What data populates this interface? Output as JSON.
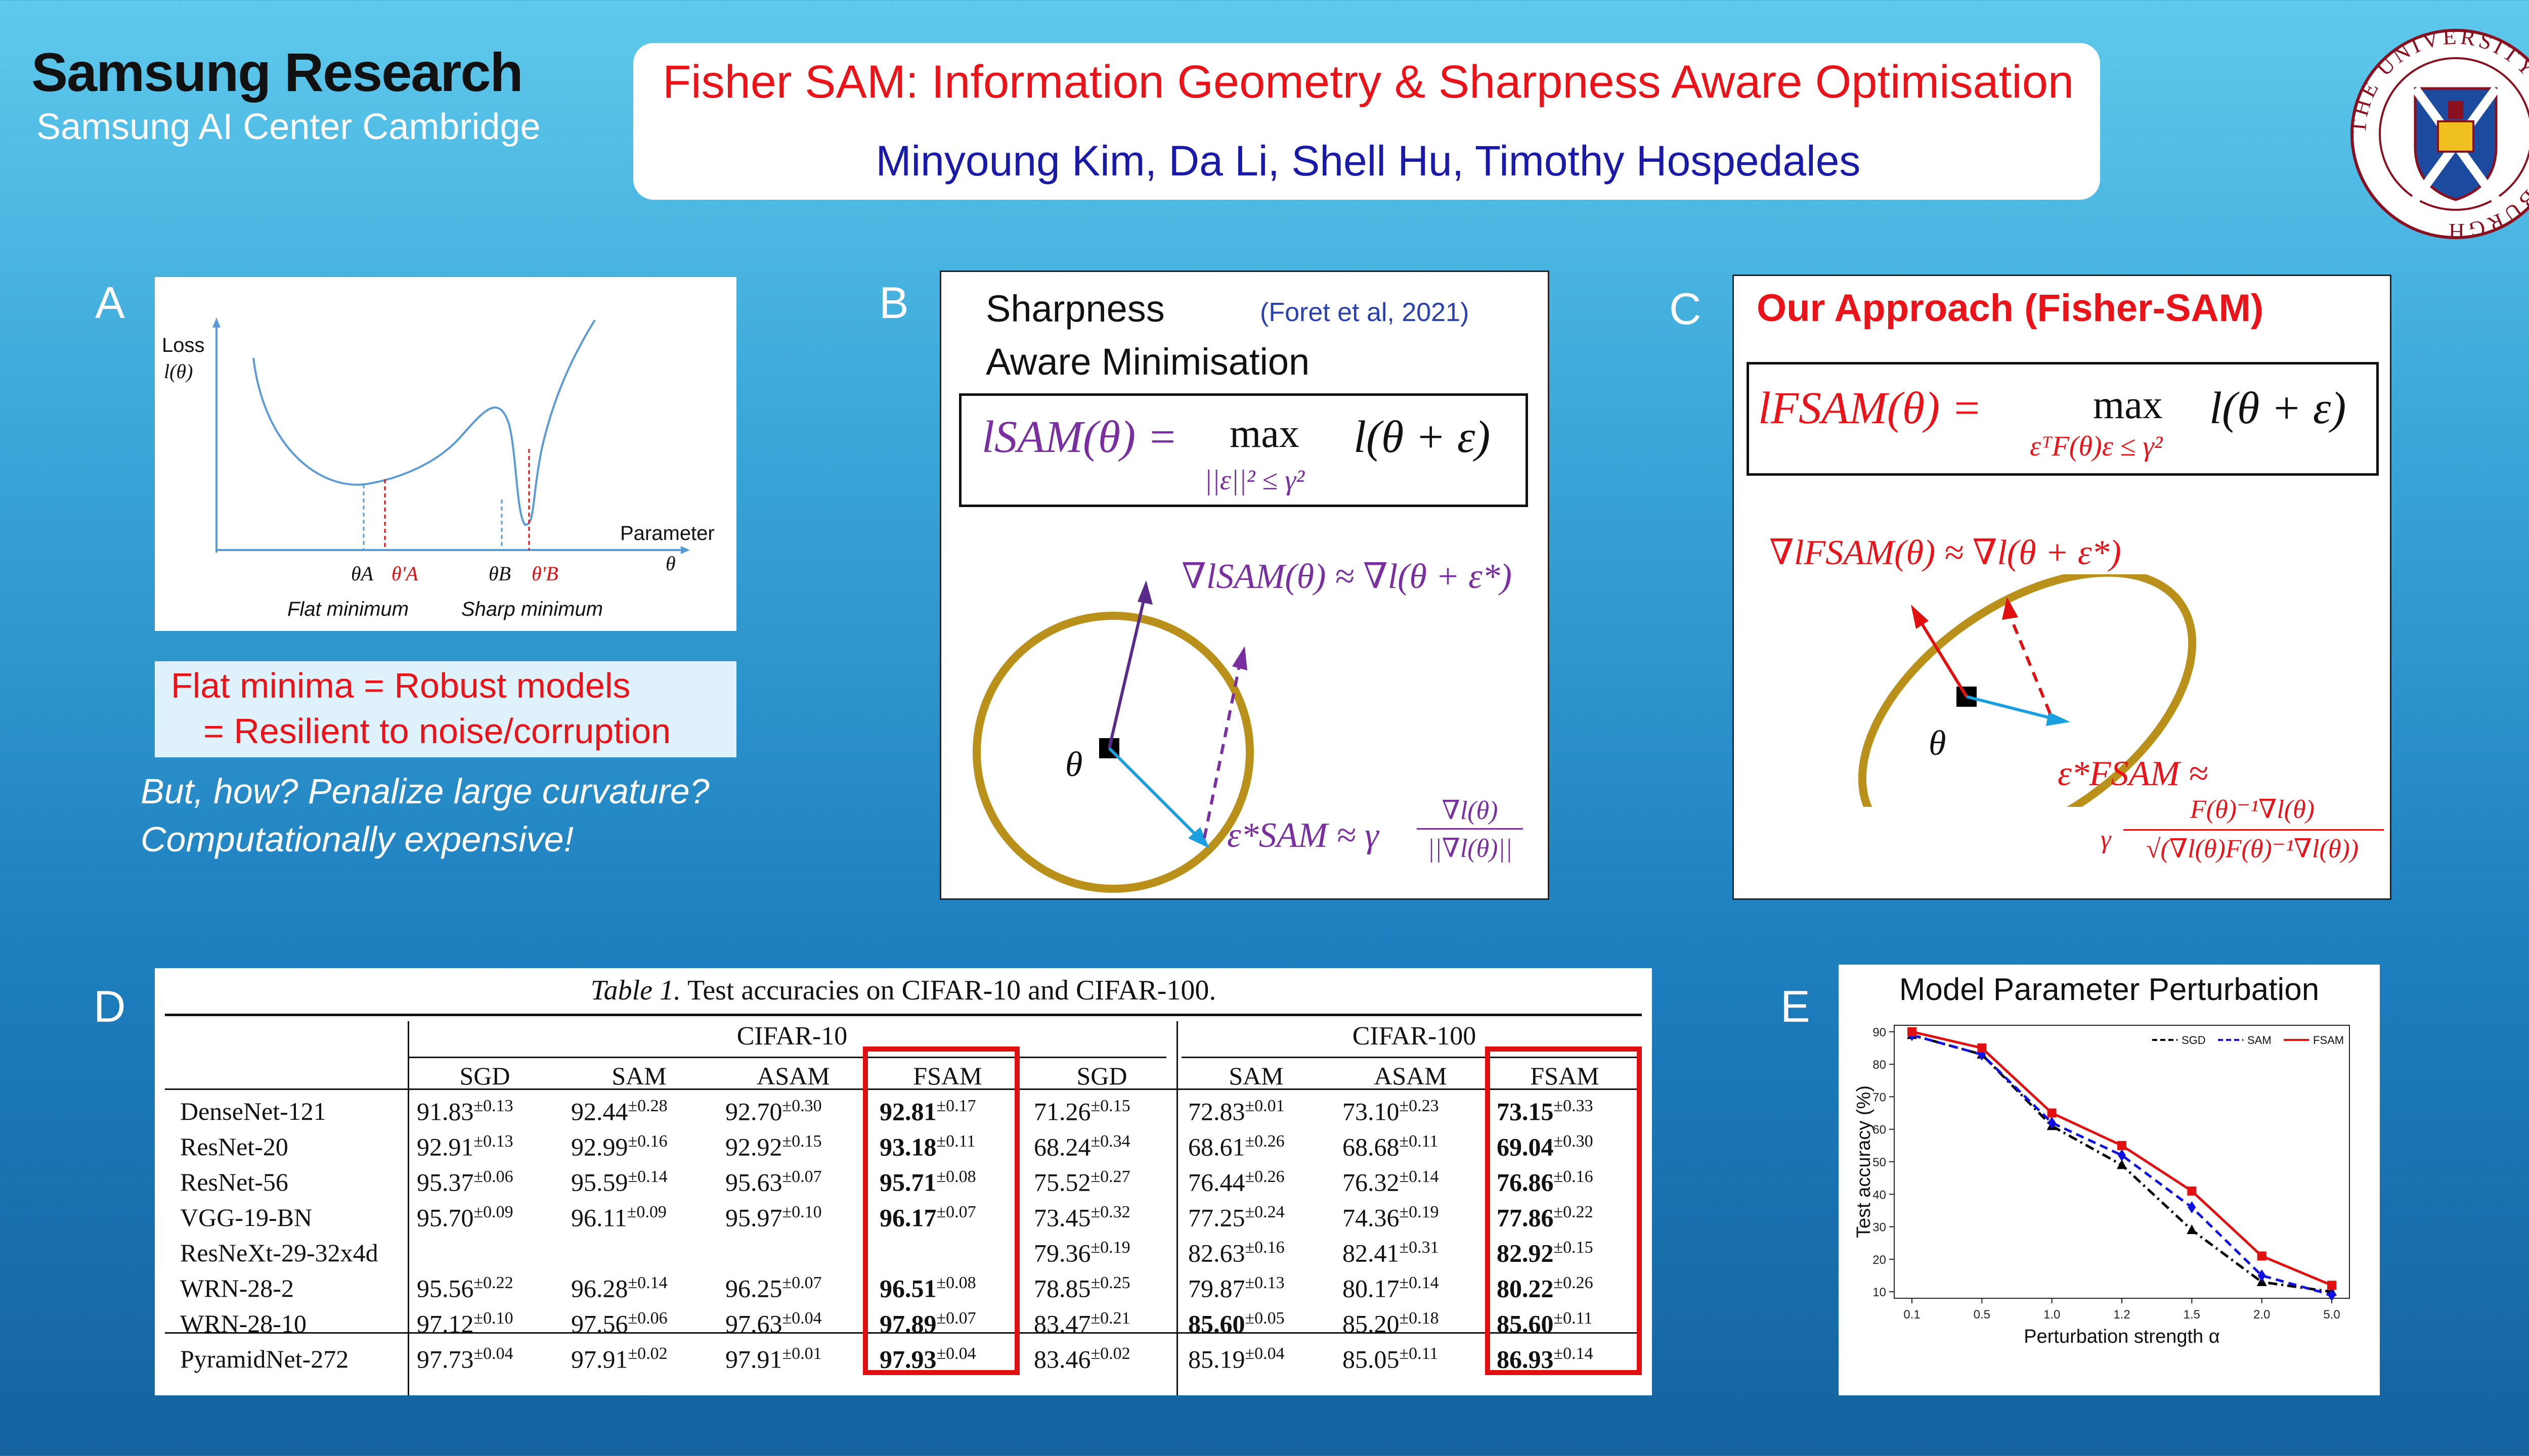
{
  "header": {
    "brand": "Samsung Research",
    "brand_sub": "Samsung AI Center Cambridge",
    "title": "Fisher SAM: Information Geometry & Sharpness Aware Optimisation",
    "authors": "Minyoung Kim,  Da Li,  Shell Hu,  Timothy Hospedales",
    "logo_text": "THE UNIVERSITY OF EDINBURGH"
  },
  "panel_a": {
    "letter": "A",
    "ylabel_1": "Loss",
    "ylabel_2": "l(θ)",
    "xlabel_1": "Parameter",
    "xlabel_2": "θ",
    "theta_a": "θA",
    "theta_a_prime": "θ'A",
    "theta_b": "θB",
    "theta_b_prime": "θ'B",
    "flat_label": "Flat minimum",
    "sharp_label": "Sharp minimum",
    "box_line1": "Flat minima = Robust models",
    "box_line2": "= Resilient to noise/corruption",
    "note_line1": "But, how? Penalize large curvature?",
    "note_line2": "Computationally expensive!"
  },
  "panel_b": {
    "letter": "B",
    "title_line1": "Sharpness",
    "title_line2": "Aware Minimisation",
    "citation": "(Foret et al, 2021)",
    "formula_lhs": "lSAM(θ) =",
    "formula_max": "max",
    "formula_sub": "||ε||² ≤ γ²",
    "formula_rhs": "l(θ + ε)",
    "grad_label": "∇lSAM(θ) ≈ ∇l(θ + ε*)",
    "theta": "θ",
    "eps_label": "ε*SAM ≈ γ",
    "eps_num": "∇l(θ)",
    "eps_den": "||∇l(θ)||"
  },
  "panel_c": {
    "letter": "C",
    "title": "Our Approach (Fisher-SAM)",
    "formula_lhs": "lFSAM(θ) =",
    "formula_max": "max",
    "formula_sub": "εᵀF(θ)ε ≤ γ²",
    "formula_rhs": "l(θ + ε)",
    "grad_label": "∇lFSAM(θ) ≈ ∇l(θ + ε*)",
    "theta": "θ",
    "eps_label": "ε*FSAM ≈",
    "eps_gamma": "γ",
    "eps_num": "F(θ)⁻¹∇l(θ)",
    "eps_den": "√(∇l(θ)F(θ)⁻¹∇l(θ))"
  },
  "panel_d": {
    "letter": "D",
    "caption_it": "Table 1.",
    "caption": "Test accuracies on CIFAR-10 and CIFAR-100.",
    "group1": "CIFAR-10",
    "group2": "CIFAR-100",
    "columns": [
      "SGD",
      "SAM",
      "ASAM",
      "FSAM",
      "SGD",
      "SAM",
      "ASAM",
      "FSAM"
    ],
    "rows": [
      {
        "name": "DenseNet-121",
        "c": [
          [
            "91.83",
            "±0.13"
          ],
          [
            "92.44",
            "±0.28"
          ],
          [
            "92.70",
            "±0.30"
          ],
          [
            "92.81",
            "±0.17"
          ],
          [
            "71.26",
            "±0.15"
          ],
          [
            "72.83",
            "±0.01"
          ],
          [
            "73.10",
            "±0.23"
          ],
          [
            "73.15",
            "±0.33"
          ]
        ]
      },
      {
        "name": "ResNet-20",
        "c": [
          [
            "92.91",
            "±0.13"
          ],
          [
            "92.99",
            "±0.16"
          ],
          [
            "92.92",
            "±0.15"
          ],
          [
            "93.18",
            "±0.11"
          ],
          [
            "68.24",
            "±0.34"
          ],
          [
            "68.61",
            "±0.26"
          ],
          [
            "68.68",
            "±0.11"
          ],
          [
            "69.04",
            "±0.30"
          ]
        ]
      },
      {
        "name": "ResNet-56",
        "c": [
          [
            "95.37",
            "±0.06"
          ],
          [
            "95.59",
            "±0.14"
          ],
          [
            "95.63",
            "±0.07"
          ],
          [
            "95.71",
            "±0.08"
          ],
          [
            "75.52",
            "±0.27"
          ],
          [
            "76.44",
            "±0.26"
          ],
          [
            "76.32",
            "±0.14"
          ],
          [
            "76.86",
            "±0.16"
          ]
        ]
      },
      {
        "name": "VGG-19-BN",
        "c": [
          [
            "95.70",
            "±0.09"
          ],
          [
            "96.11",
            "±0.09"
          ],
          [
            "95.97",
            "±0.10"
          ],
          [
            "96.17",
            "±0.07"
          ],
          [
            "73.45",
            "±0.32"
          ],
          [
            "77.25",
            "±0.24"
          ],
          [
            "74.36",
            "±0.19"
          ],
          [
            "77.86",
            "±0.22"
          ]
        ]
      },
      {
        "name": "ResNeXt-29-32x4d",
        "c": [
          [
            "",
            ""
          ],
          [
            "",
            ""
          ],
          [
            "",
            ""
          ],
          [
            "",
            ""
          ],
          [
            "79.36",
            "±0.19"
          ],
          [
            "82.63",
            "±0.16"
          ],
          [
            "82.41",
            "±0.31"
          ],
          [
            "82.92",
            "±0.15"
          ]
        ]
      },
      {
        "name": "WRN-28-2",
        "c": [
          [
            "95.56",
            "±0.22"
          ],
          [
            "96.28",
            "±0.14"
          ],
          [
            "96.25",
            "±0.07"
          ],
          [
            "96.51",
            "±0.08"
          ],
          [
            "78.85",
            "±0.25"
          ],
          [
            "79.87",
            "±0.13"
          ],
          [
            "80.17",
            "±0.14"
          ],
          [
            "80.22",
            "±0.26"
          ]
        ]
      },
      {
        "name": "WRN-28-10",
        "c": [
          [
            "97.12",
            "±0.10"
          ],
          [
            "97.56",
            "±0.06"
          ],
          [
            "97.63",
            "±0.04"
          ],
          [
            "97.89",
            "±0.07"
          ],
          [
            "83.47",
            "±0.21"
          ],
          [
            "85.60",
            "±0.05"
          ],
          [
            "85.20",
            "±0.18"
          ],
          [
            "85.60",
            "±0.11"
          ]
        ]
      },
      {
        "name": "PyramidNet-272",
        "c": [
          [
            "97.73",
            "±0.04"
          ],
          [
            "97.91",
            "±0.02"
          ],
          [
            "97.91",
            "±0.01"
          ],
          [
            "97.93",
            "±0.04"
          ],
          [
            "83.46",
            "±0.02"
          ],
          [
            "85.19",
            "±0.04"
          ],
          [
            "85.05",
            "±0.11"
          ],
          [
            "86.93",
            "±0.14"
          ]
        ]
      }
    ],
    "bold_cells": [
      [
        0,
        3
      ],
      [
        1,
        3
      ],
      [
        2,
        3
      ],
      [
        3,
        3
      ],
      [
        5,
        3
      ],
      [
        6,
        3
      ],
      [
        7,
        3
      ],
      [
        0,
        7
      ],
      [
        1,
        7
      ],
      [
        2,
        7
      ],
      [
        3,
        7
      ],
      [
        4,
        7
      ],
      [
        5,
        7
      ],
      [
        6,
        5
      ],
      [
        6,
        7
      ],
      [
        7,
        7
      ]
    ]
  },
  "panel_e": {
    "letter": "E",
    "title": "Model Parameter Perturbation"
  },
  "chart_data": {
    "type": "line",
    "title": "Model Parameter Perturbation",
    "xlabel": "Perturbation strength α",
    "ylabel": "Test accuracy (%)",
    "categories": [
      "0.1",
      "0.5",
      "1.0",
      "1.2",
      "1.5",
      "2.0",
      "5.0"
    ],
    "yticks": [
      10,
      20,
      30,
      40,
      50,
      60,
      70,
      80,
      90
    ],
    "ylim": [
      8,
      92
    ],
    "legend_position": "top-right",
    "series": [
      {
        "name": "SGD",
        "color": "#000000",
        "values": [
          89,
          83,
          61,
          49,
          29,
          13,
          10
        ]
      },
      {
        "name": "SAM",
        "color": "#1010e0",
        "values": [
          89,
          83,
          62,
          52,
          36,
          15,
          9
        ]
      },
      {
        "name": "FSAM",
        "color": "#e01010",
        "values": [
          90,
          85,
          65,
          55,
          41,
          21,
          12
        ]
      }
    ]
  }
}
